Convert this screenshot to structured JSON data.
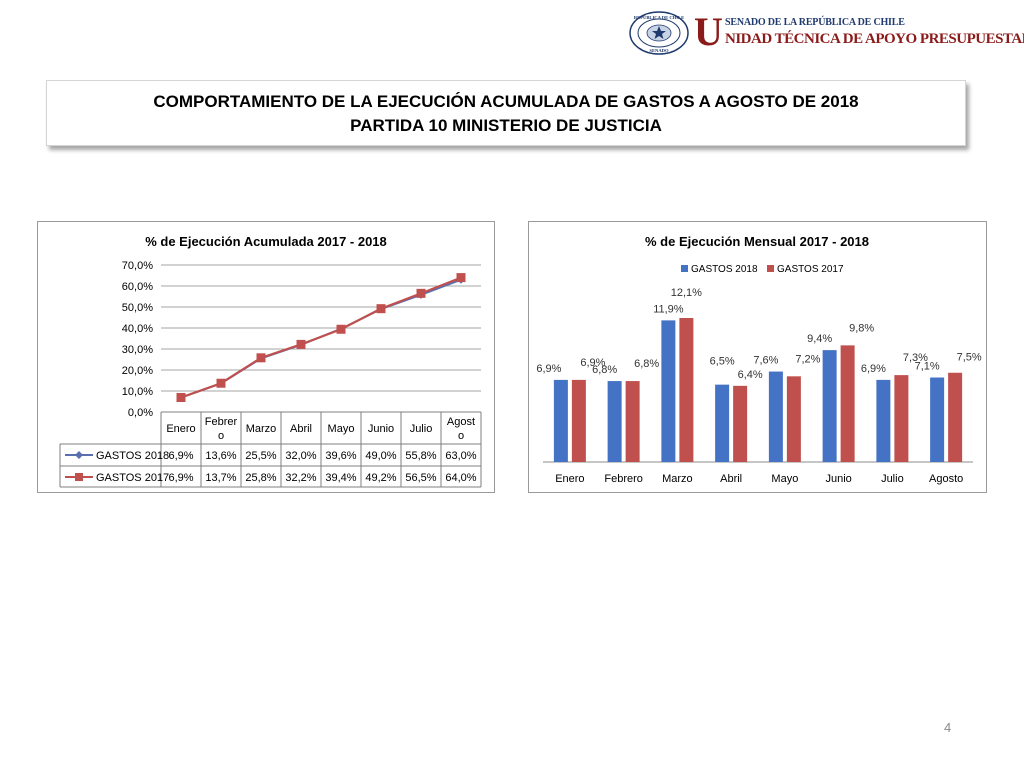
{
  "header": {
    "seal_text_top": "REPÚBLICA DE CHILE",
    "seal_text_bottom": "SENADO",
    "org_initial": "U",
    "org_line1": "SENADO DE LA REPÚBLICA DE CHILE",
    "org_line2": "NIDAD TÉCNICA DE APOYO PRESUPUESTARIO"
  },
  "title": {
    "line1": "COMPORTAMIENTO DE LA EJECUCIÓN ACUMULADA DE GASTOS A AGOSTO DE 2018",
    "line2": "PARTIDA 10 MINISTERIO DE JUSTICIA"
  },
  "page_number": "4",
  "colors": {
    "gastos2018": "#4472c4",
    "gastos2017": "#c0504d",
    "line2018": "#5a6fb0",
    "line2017": "#c0504d"
  },
  "chart_data": [
    {
      "type": "line",
      "title": "% de Ejecución Acumulada 2017 - 2018",
      "categories": [
        "Enero",
        "Febrero",
        "Marzo",
        "Abril",
        "Mayo",
        "Junio",
        "Julio",
        "Agosto"
      ],
      "category_labels_wrapped": [
        [
          "Enero"
        ],
        [
          "Febrer",
          "o"
        ],
        [
          "Marzo"
        ],
        [
          "Abril"
        ],
        [
          "Mayo"
        ],
        [
          "Junio"
        ],
        [
          "Julio"
        ],
        [
          "Agost",
          "o"
        ]
      ],
      "ylim": [
        0,
        70
      ],
      "yticks": [
        "0,0%",
        "10,0%",
        "20,0%",
        "30,0%",
        "40,0%",
        "50,0%",
        "60,0%",
        "70,0%"
      ],
      "series": [
        {
          "name": "GASTOS 2018",
          "values": [
            6.9,
            13.6,
            25.5,
            32.0,
            39.6,
            49.0,
            55.8,
            63.0
          ],
          "labels": [
            "6,9%",
            "13,6%",
            "25,5%",
            "32,0%",
            "39,6%",
            "49,0%",
            "55,8%",
            "63,0%"
          ]
        },
        {
          "name": "GASTOS 2017",
          "values": [
            6.9,
            13.7,
            25.8,
            32.2,
            39.4,
            49.2,
            56.5,
            64.0
          ],
          "labels": [
            "6,9%",
            "13,7%",
            "25,8%",
            "32,2%",
            "39,4%",
            "49,2%",
            "56,5%",
            "64,0%"
          ]
        }
      ],
      "data_table": true,
      "grid": true
    },
    {
      "type": "bar",
      "title": "% de Ejecución Mensual 2017 - 2018",
      "categories": [
        "Enero",
        "Febrero",
        "Marzo",
        "Abril",
        "Mayo",
        "Junio",
        "Julio",
        "Agosto"
      ],
      "legend": "top",
      "series": [
        {
          "name": "GASTOS 2018",
          "values": [
            6.9,
            6.8,
            11.9,
            6.5,
            7.6,
            9.4,
            6.9,
            7.1
          ],
          "labels": [
            "6,9%",
            "6,8%",
            "11,9%",
            "6,5%",
            "7,6%",
            "9,4%",
            "6,9%",
            "7,1%"
          ]
        },
        {
          "name": "GASTOS 2017",
          "values": [
            6.9,
            6.8,
            12.1,
            6.4,
            7.2,
            9.8,
            7.3,
            7.5
          ],
          "labels": [
            "6,9%",
            "6,8%",
            "12,1%",
            "6,4%",
            "7,2%",
            "9,8%",
            "7,3%",
            "7,5%"
          ]
        }
      ],
      "grid": false
    }
  ]
}
